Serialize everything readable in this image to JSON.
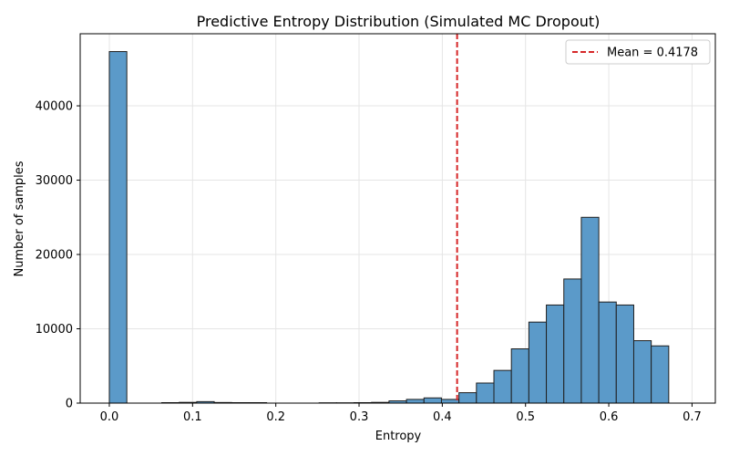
{
  "chart_data": {
    "type": "bar",
    "title": "Predictive Entropy Distribution (Simulated MC Dropout)",
    "xlabel": "Entropy",
    "ylabel": "Number of samples",
    "xlim": [
      -0.035,
      0.728
    ],
    "ylim": [
      0,
      49700
    ],
    "bin_edges": [
      0,
      0.021,
      0.042,
      0.063,
      0.084,
      0.105,
      0.126,
      0.147,
      0.168,
      0.189,
      0.21,
      0.231,
      0.252,
      0.273,
      0.294,
      0.315,
      0.336,
      0.357,
      0.378,
      0.399,
      0.42,
      0.441,
      0.462,
      0.483,
      0.504,
      0.525,
      0.546,
      0.567,
      0.588,
      0.609,
      0.63,
      0.651,
      0.672,
      0.693
    ],
    "values": [
      47300,
      0,
      0,
      60,
      100,
      200,
      80,
      60,
      60,
      0,
      0,
      0,
      40,
      40,
      60,
      100,
      300,
      500,
      700,
      500,
      1400,
      2700,
      4400,
      7300,
      10900,
      13200,
      16700,
      25000,
      13600,
      13200,
      8400,
      7700,
      0
    ],
    "x_ticks": [
      0.0,
      0.1,
      0.2,
      0.3,
      0.4,
      0.5,
      0.6,
      0.7
    ],
    "x_tick_labels": [
      "0.0",
      "0.1",
      "0.2",
      "0.3",
      "0.4",
      "0.5",
      "0.6",
      "0.7"
    ],
    "y_ticks": [
      0,
      10000,
      20000,
      30000,
      40000
    ],
    "y_tick_labels": [
      "0",
      "10000",
      "20000",
      "30000",
      "40000"
    ],
    "mean_line": {
      "value": 0.4178,
      "label": "Mean = 0.4178",
      "color": "#d62728",
      "style": "dashed"
    },
    "legend_position": "top-right",
    "grid": true,
    "bar_color": "#5b9ac9",
    "bar_edge_color": "#1f1f1f"
  }
}
